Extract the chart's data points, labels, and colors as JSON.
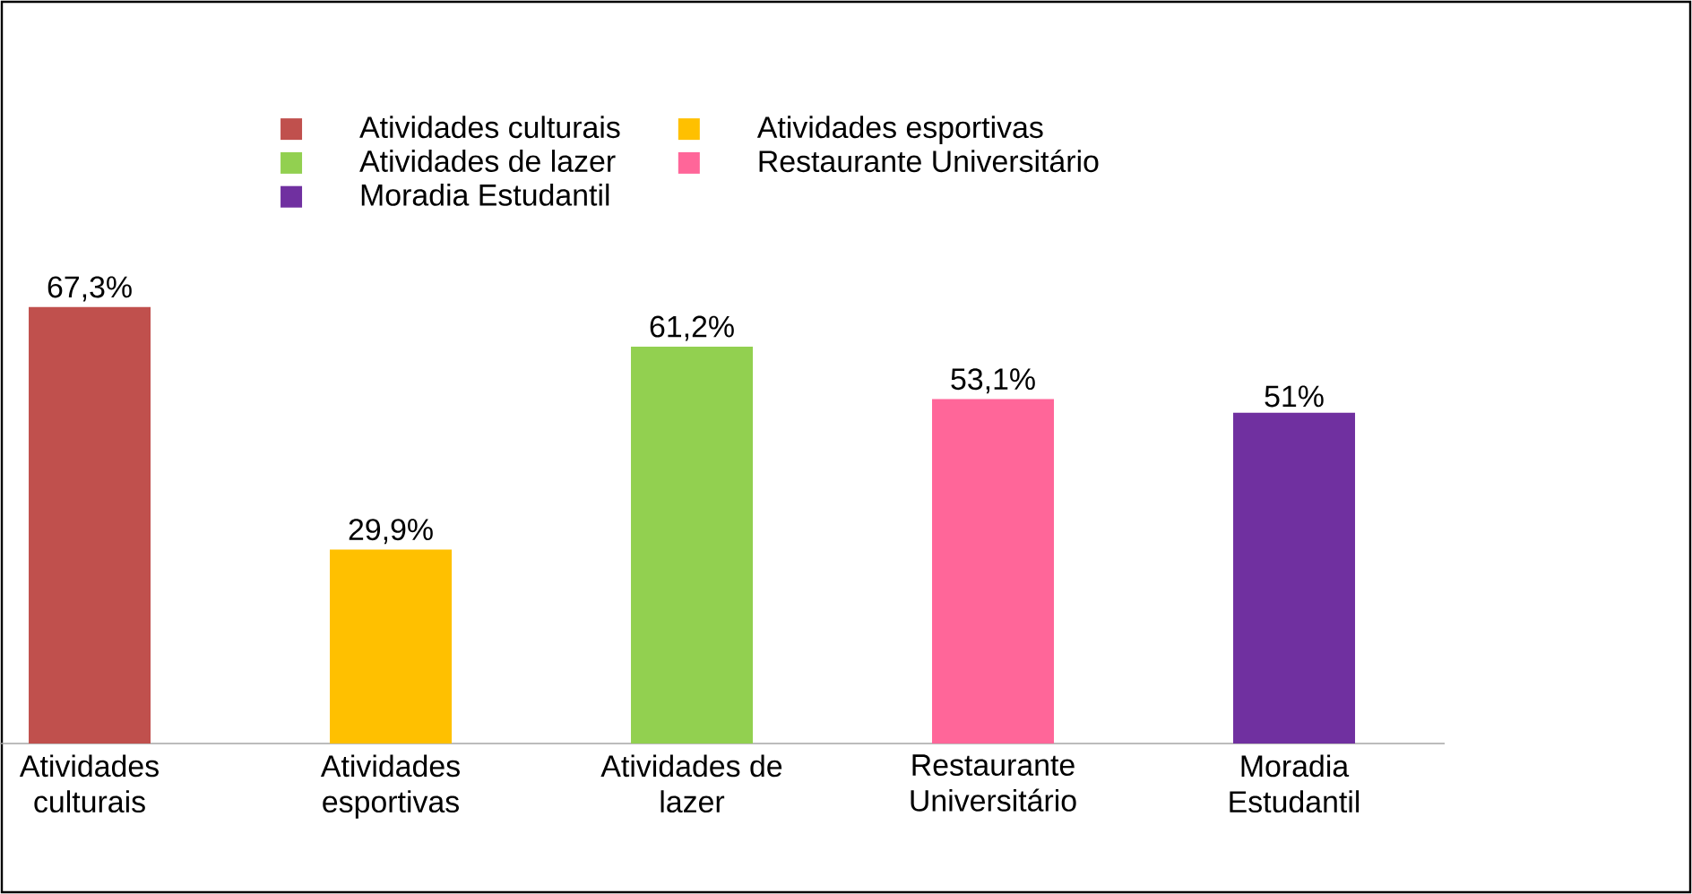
{
  "chart_data": {
    "type": "bar",
    "categories": [
      "Atividades culturais",
      "Atividades esportivas",
      "Atividades de lazer",
      "Restaurante Universitário",
      "Moradia Estudantil"
    ],
    "series": [
      {
        "name": "Atividades culturais",
        "color": "#c0504d",
        "values": [
          67.3,
          null,
          null,
          null,
          null
        ],
        "value_labels": [
          "67,3%",
          null,
          null,
          null,
          null
        ]
      },
      {
        "name": "Atividades esportivas",
        "color": "#ffc000",
        "values": [
          null,
          29.9,
          null,
          null,
          null
        ],
        "value_labels": [
          null,
          "29,9%",
          null,
          null,
          null
        ]
      },
      {
        "name": "Atividades de lazer",
        "color": "#92d050",
        "values": [
          null,
          null,
          61.2,
          null,
          null
        ],
        "value_labels": [
          null,
          null,
          "61,2%",
          null,
          null
        ]
      },
      {
        "name": "Restaurante Universitário",
        "color": "#ff6699",
        "values": [
          null,
          null,
          null,
          53.1,
          null
        ],
        "value_labels": [
          null,
          null,
          null,
          "53,1%",
          null
        ]
      },
      {
        "name": "Moradia Estudantil",
        "color": "#7030a0",
        "values": [
          null,
          null,
          null,
          null,
          51
        ],
        "value_labels": [
          null,
          null,
          null,
          null,
          "51%"
        ]
      }
    ],
    "legend": "top"
  }
}
